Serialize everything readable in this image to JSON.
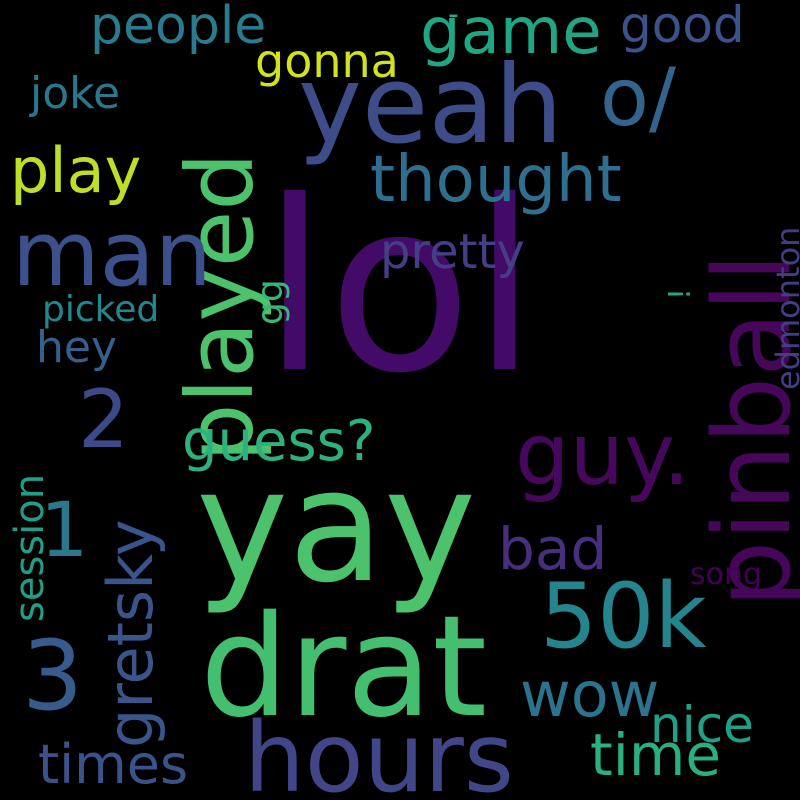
{
  "background": "#000000",
  "words": [
    {
      "text": "lol",
      "color": "#440a68",
      "rot": 0
    },
    {
      "text": "yay",
      "color": "#4cc26c",
      "rot": 0
    },
    {
      "text": "drat",
      "color": "#44bf70",
      "rot": 0
    },
    {
      "text": "hours",
      "color": "#404688",
      "rot": 0
    },
    {
      "text": "yeah",
      "color": "#3e4c8a",
      "rot": 0
    },
    {
      "text": "pinball",
      "color": "#46075a",
      "rot": -90
    },
    {
      "text": "played",
      "color": "#4cc26c",
      "rot": -90
    },
    {
      "text": "man",
      "color": "#3c508b",
      "rot": 0
    },
    {
      "text": "guy.",
      "color": "#46085c",
      "rot": 0
    },
    {
      "text": "50k",
      "color": "#25858e",
      "rot": 0
    },
    {
      "text": "o/",
      "color": "#32648e",
      "rot": 0
    },
    {
      "text": "thought",
      "color": "#2e6e8e",
      "rot": 0
    },
    {
      "text": "2",
      "color": "#3e4989",
      "rot": 0
    },
    {
      "text": "3",
      "color": "#375b8d",
      "rot": 0
    },
    {
      "text": "1",
      "color": "#2a778e",
      "rot": 0
    },
    {
      "text": "gretsky",
      "color": "#3a548c",
      "rot": -90
    },
    {
      "text": "game",
      "color": "#21a685",
      "rot": 0
    },
    {
      "text": "play",
      "color": "#bddf26",
      "rot": 0
    },
    {
      "text": "guess?",
      "color": "#2db27d",
      "rot": 0
    },
    {
      "text": "wow",
      "color": "#2c738e",
      "rot": 0
    },
    {
      "text": "time",
      "color": "#2ab07f",
      "rot": 0
    },
    {
      "text": "times",
      "color": "#3b528b",
      "rot": 0
    },
    {
      "text": "bad",
      "color": "#472f7d",
      "rot": 0
    },
    {
      "text": "nice",
      "color": "#1fa187",
      "rot": 0
    },
    {
      "text": "people",
      "color": "#287c8e",
      "rot": 0
    },
    {
      "text": "good",
      "color": "#3b528b",
      "rot": 0
    },
    {
      "text": "gonna",
      "color": "#d2e21b",
      "rot": 0
    },
    {
      "text": "pretty",
      "color": "#433e85",
      "rot": 0
    },
    {
      "text": "joke",
      "color": "#29798e",
      "rot": 0
    },
    {
      "text": "hey",
      "color": "#355f8d",
      "rot": 0
    },
    {
      "text": "session",
      "color": "#1f9e89",
      "rot": -90
    },
    {
      "text": "picked",
      "color": "#24878e",
      "rot": 0
    },
    {
      "text": "gg",
      "color": "#35b779",
      "rot": -90
    },
    {
      "text": "edmonton",
      "color": "#433d84",
      "rot": -90
    },
    {
      "text": "song",
      "color": "#440154",
      "rot": 0
    },
    {
      "text": "!",
      "color": "#22a884",
      "rot": -90
    },
    {
      "text": "-",
      "color": "#29af7f",
      "rot": 0
    }
  ]
}
